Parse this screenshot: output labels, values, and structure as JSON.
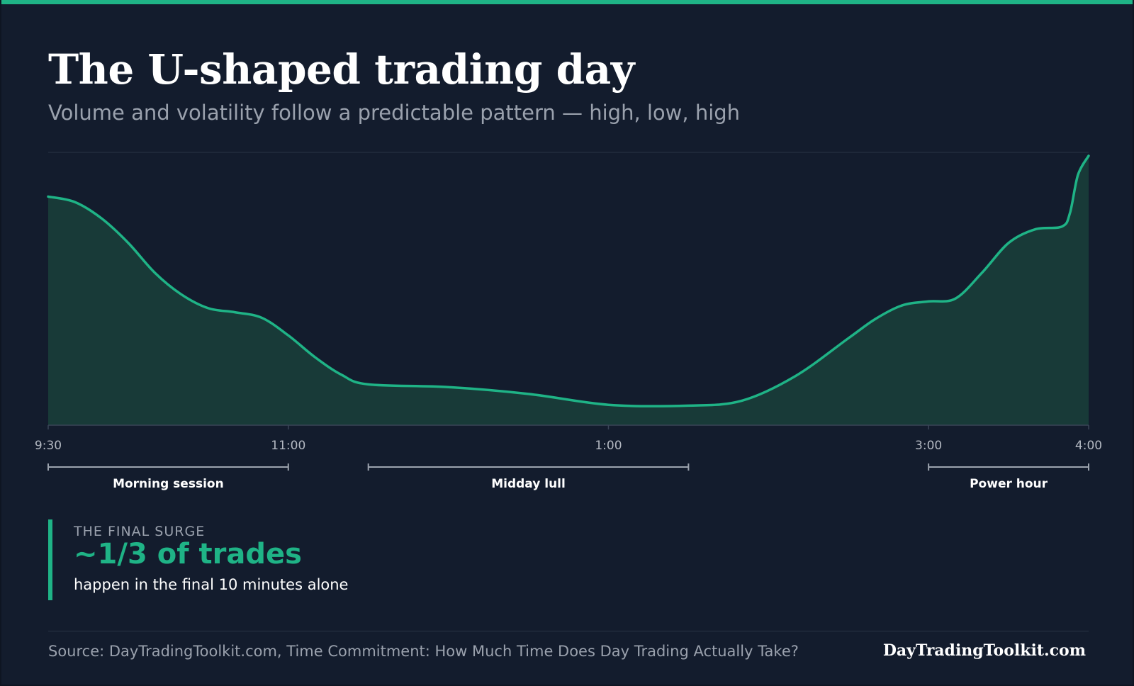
{
  "header": {
    "title": "The U-shaped trading day",
    "subtitle": "Volume and volatility follow a predictable pattern — high, low, high"
  },
  "chart_data": {
    "type": "area",
    "title": "The U-shaped trading day",
    "subtitle": "Volume and volatility follow a predictable pattern — high, low, high",
    "xlabel": "",
    "ylabel": "",
    "x_unit": "minutes after 9:30",
    "xlim": [
      0,
      390
    ],
    "ylim": [
      0,
      100
    ],
    "grid": false,
    "series": [
      {
        "values": [
          [
            0,
            84
          ],
          [
            10,
            82
          ],
          [
            20,
            76
          ],
          [
            30,
            67
          ],
          [
            40,
            56
          ],
          [
            50,
            48
          ],
          [
            60,
            43
          ],
          [
            70,
            41.5
          ],
          [
            80,
            39.5
          ],
          [
            90,
            33
          ],
          [
            100,
            25
          ],
          [
            110,
            18.5
          ],
          [
            120,
            15
          ],
          [
            150,
            14
          ],
          [
            180,
            11.5
          ],
          [
            210,
            7.5
          ],
          [
            240,
            7.2
          ],
          [
            260,
            9
          ],
          [
            280,
            18
          ],
          [
            300,
            32
          ],
          [
            310,
            39
          ],
          [
            320,
            44
          ],
          [
            330,
            45.5
          ],
          [
            340,
            46.5
          ],
          [
            350,
            56
          ],
          [
            360,
            67
          ],
          [
            370,
            72
          ],
          [
            380,
            73
          ],
          [
            383,
            78
          ],
          [
            386,
            92
          ],
          [
            390,
            99
          ]
        ]
      }
    ],
    "ticks": [
      "9:30",
      "11:00",
      "1:00",
      "3:00",
      "4:00"
    ],
    "tick_positions": [
      0,
      90,
      210,
      330,
      390
    ],
    "sessions": [
      {
        "label": "Morning session",
        "start": 0,
        "end": 90
      },
      {
        "label": "Midday lull",
        "start": 120,
        "end": 240
      },
      {
        "label": "Power hour",
        "start": 330,
        "end": 390
      }
    ],
    "colors": {
      "line": "#1fb386",
      "fill": "#183a38",
      "axis": "#3a4557",
      "tick_text": "#b3b8c1",
      "bracket": "#9ca3ae"
    }
  },
  "callout": {
    "label": "THE FINAL SURGE",
    "value": "~1/3 of trades",
    "description": "happen in the final 10 minutes alone"
  },
  "footer": {
    "source": "Source: DayTradingToolkit.com, Time Commitment: How Much Time Does Day Trading Actually Take?",
    "brand": "DayTradingToolkit.com"
  }
}
